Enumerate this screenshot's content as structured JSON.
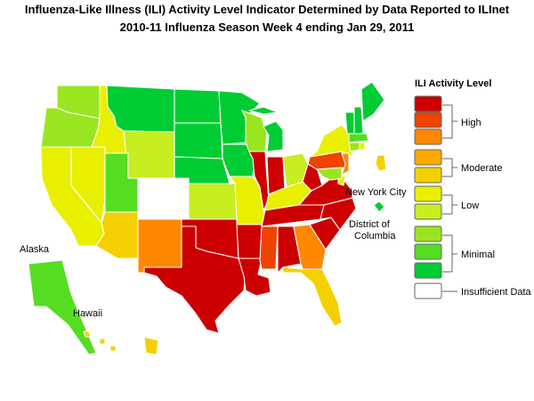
{
  "title_line1": "Influenza-Like Illness (ILI) Activity Level Indicator Determined by Data Reported to ILInet",
  "title_line2": "2010-11  Influenza Season Week  4 ending Jan 29, 2011",
  "legend": {
    "title": "ILI Activity Level",
    "levels": [
      {
        "level": 10,
        "color": "#cc0000"
      },
      {
        "level": 9,
        "color": "#ee4400"
      },
      {
        "level": 8,
        "color": "#ff8800"
      },
      {
        "level": 7,
        "color": "#ffaa00"
      },
      {
        "level": 6,
        "color": "#f5d000"
      },
      {
        "level": 5,
        "color": "#e8f000"
      },
      {
        "level": 4,
        "color": "#c6ee20"
      },
      {
        "level": 3,
        "color": "#99e620"
      },
      {
        "level": 2,
        "color": "#55dd22"
      },
      {
        "level": 1,
        "color": "#00cc33"
      },
      {
        "level": 0,
        "color": "#ffffff"
      }
    ],
    "groups": {
      "high": "High",
      "moderate": "Moderate",
      "low": "Low",
      "minimal": "Minimal",
      "insufficient": "Insufficient Data"
    }
  },
  "labels": {
    "alaska": "Alaska",
    "hawaii": "Hawaii",
    "nyc": "New York City",
    "dc_line1": "District of",
    "dc_line2": "Columbia"
  },
  "states": {
    "WA": 3,
    "OR": 3,
    "CA": 5,
    "NV": 5,
    "ID": 5,
    "MT": 1,
    "WY": 4,
    "UT": 2,
    "AZ": 6,
    "CO": 0,
    "NM": 8,
    "ND": 1,
    "SD": 1,
    "NE": 1,
    "KS": 4,
    "OK": 10,
    "TX": 10,
    "MN": 1,
    "IA": 1,
    "MO": 5,
    "AR": 10,
    "LA": 10,
    "WI": 3,
    "IL": 10,
    "MI": 1,
    "IN": 10,
    "OH": 4,
    "KY": 5,
    "TN": 10,
    "MS": 9,
    "AL": 10,
    "GA": 8,
    "FL": 6,
    "SC": 10,
    "NC": 10,
    "VA": 10,
    "WV": 10,
    "PA": 9,
    "NY": 5,
    "VT": 1,
    "NH": 1,
    "ME": 1,
    "MA": 2,
    "CT": 3,
    "RI": 5,
    "NJ": 8,
    "DE": 5,
    "MD": 3,
    "AK": 2,
    "HI": 6,
    "NYC": 6,
    "DC": 1
  }
}
